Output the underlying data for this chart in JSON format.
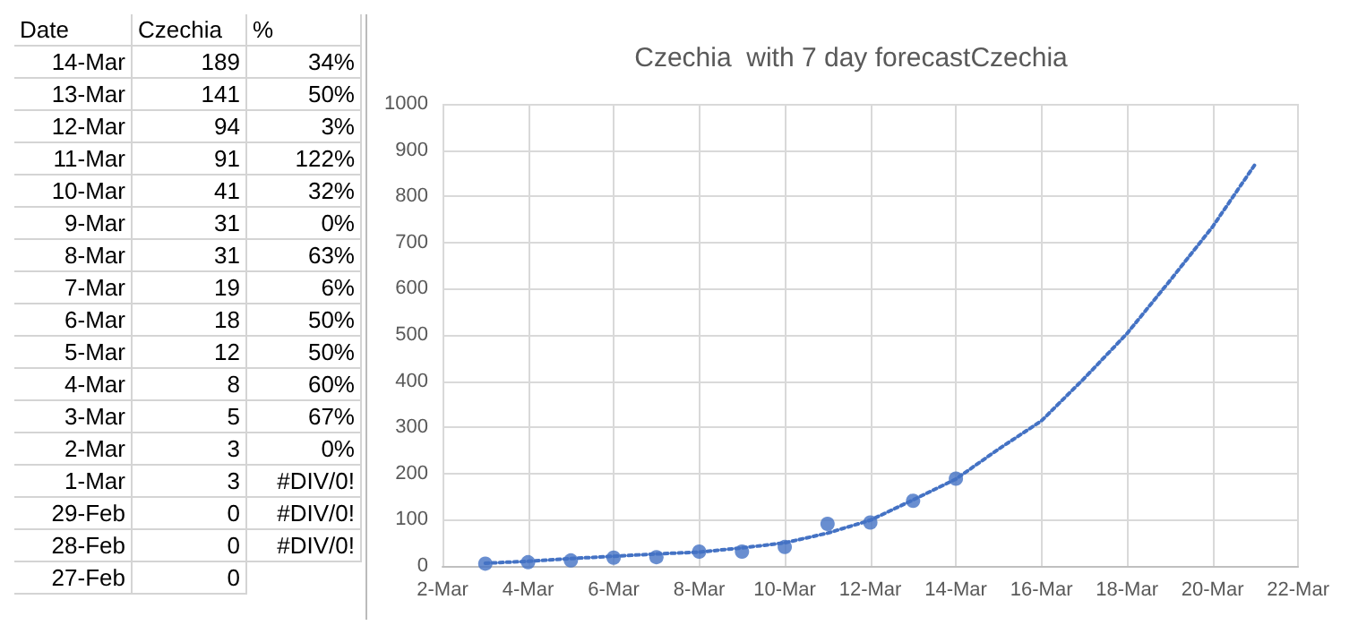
{
  "chart_data": [
    {
      "type": "other",
      "annotations": [
        "Date",
        "Czechia",
        "%",
        "14-Mar",
        "189",
        "34%",
        "13-Mar",
        "141",
        "50%",
        "12-Mar",
        "94",
        "3%",
        "11-Mar",
        "91",
        "122%",
        "10-Mar",
        "41",
        "32%",
        "9-Mar",
        "31",
        "0%",
        "8-Mar",
        "31",
        "63%",
        "7-Mar",
        "19",
        "6%",
        "6-Mar",
        "18",
        "50%",
        "5-Mar",
        "12",
        "50%",
        "4-Mar",
        "8",
        "60%",
        "3-Mar",
        "5",
        "67%",
        "2-Mar",
        "3",
        "0%",
        "1-Mar",
        "3",
        "#DIV/0!",
        "29-Feb",
        "0",
        "#DIV/0!",
        "28-Feb",
        "0",
        "#DIV/0!",
        "27-Feb",
        "0"
      ]
    },
    {
      "type": "scatter",
      "title": "Czechia  with 7 day forecastCzechia",
      "marker": "circle",
      "grid": true,
      "xlim": [
        "--03-02",
        "--03-22"
      ],
      "xticks": [
        {
          "value": "--03-02",
          "label": "2-Mar"
        },
        {
          "value": "--03-04",
          "label": "4-Mar"
        },
        {
          "value": "--03-06",
          "label": "6-Mar"
        },
        {
          "value": "--03-08",
          "label": "8-Mar"
        },
        {
          "value": "--03-10",
          "label": "10-Mar"
        },
        {
          "value": "--03-12",
          "label": "12-Mar"
        },
        {
          "value": "--03-14",
          "label": "14-Mar"
        },
        {
          "value": "--03-16",
          "label": "16-Mar"
        },
        {
          "value": "--03-18",
          "label": "18-Mar"
        },
        {
          "value": "--03-20",
          "label": "20-Mar"
        },
        {
          "value": "--03-22",
          "label": "22-Mar"
        }
      ],
      "ylim": [
        0,
        1000
      ],
      "yticks": [
        0,
        100,
        200,
        300,
        400,
        500,
        600,
        700,
        800,
        900,
        1000
      ],
      "series": [
        {
          "type": "scatter",
          "color": "#4472c4",
          "x": [
            "--03-03",
            "--03-04",
            "--03-05",
            "--03-06",
            "--03-07",
            "--03-08",
            "--03-09",
            "--03-10",
            "--03-11",
            "--03-12",
            "--03-13",
            "--03-14"
          ],
          "values": [
            5,
            8,
            12,
            18,
            19,
            31,
            31,
            41,
            91,
            94,
            141,
            189
          ]
        },
        {
          "type": "line",
          "color": "#4472c4",
          "line_style": "dotted",
          "marker": "none",
          "x": [
            "--03-03",
            "--03-04",
            "--03-05",
            "--03-06",
            "--03-07",
            "--03-08",
            "--03-09",
            "--03-10",
            "--03-11",
            "--03-12",
            "--03-13",
            "--03-14",
            "--03-15",
            "--03-16",
            "--03-17",
            "--03-18",
            "--03-19",
            "--03-20",
            "--03-21"
          ],
          "values": [
            6,
            10,
            16,
            21,
            26,
            30,
            39,
            50,
            71,
            99,
            143,
            188,
            253,
            314,
            406,
            503,
            617,
            734,
            870
          ]
        }
      ]
    }
  ]
}
